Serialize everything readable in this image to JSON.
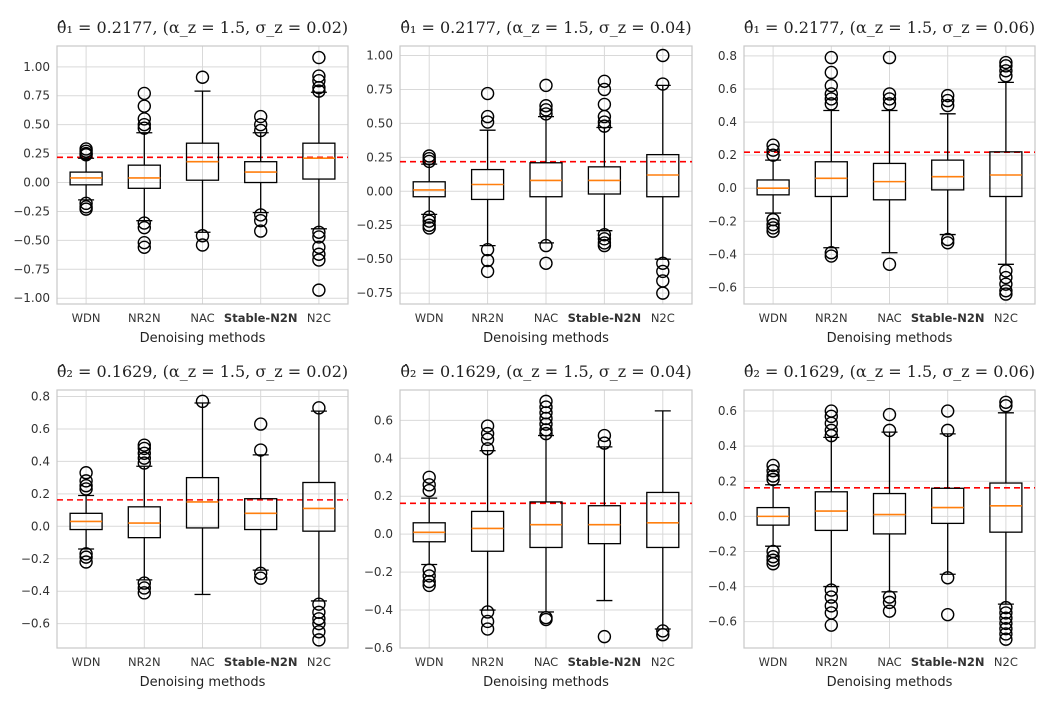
{
  "figure": {
    "colors": {
      "box": "#000000",
      "median": "#ff7f0e",
      "reference": "#ff0000",
      "grid": "#d9d9d9",
      "frame": "#c8c8c8"
    }
  },
  "chart_data": [
    {
      "type": "box",
      "title": "θ̂₁ = 0.2177, (α_z = 1.5, σ_z = 0.02)",
      "xlabel": "Denoising methods",
      "ylabel": "",
      "categories": [
        "WDN",
        "NR2N",
        "NAC",
        "Stable-N2N",
        "N2C"
      ],
      "bold_category": "Stable-N2N",
      "yticks": [
        1.0,
        0.75,
        0.5,
        0.25,
        0.0,
        -0.25,
        -0.5,
        -0.75,
        -1.0
      ],
      "ytick_labels": [
        "1.00",
        "0.75",
        "0.50",
        "0.25",
        "0.00",
        "−0.25",
        "−0.50",
        "−0.75",
        "−1.00"
      ],
      "ylim": [
        -1.05,
        1.18
      ],
      "reference": 0.2177,
      "boxes": [
        {
          "whislo": -0.15,
          "q1": -0.02,
          "med": 0.04,
          "q3": 0.09,
          "whishi": 0.21,
          "fliers": [
            0.29,
            0.27,
            0.25,
            0.24,
            -0.18,
            -0.21,
            -0.23
          ]
        },
        {
          "whislo": -0.33,
          "q1": -0.05,
          "med": 0.04,
          "q3": 0.15,
          "whishi": 0.43,
          "fliers": [
            0.77,
            0.66,
            0.55,
            0.5,
            0.47,
            -0.35,
            -0.39,
            -0.52,
            -0.56
          ]
        },
        {
          "whislo": -0.43,
          "q1": 0.02,
          "med": 0.18,
          "q3": 0.34,
          "whishi": 0.79,
          "fliers": [
            0.91,
            -0.46,
            -0.54
          ]
        },
        {
          "whislo": -0.26,
          "q1": 0.0,
          "med": 0.09,
          "q3": 0.18,
          "whishi": 0.43,
          "fliers": [
            0.57,
            0.5,
            0.45,
            -0.28,
            -0.33,
            -0.42
          ]
        },
        {
          "whislo": -0.4,
          "q1": 0.03,
          "med": 0.21,
          "q3": 0.34,
          "whishi": 0.78,
          "fliers": [
            1.08,
            0.92,
            0.88,
            0.82,
            0.79,
            -0.43,
            -0.47,
            -0.56,
            -0.62,
            -0.67,
            -0.93
          ]
        }
      ]
    },
    {
      "type": "box",
      "title": "θ̂₁ = 0.2177, (α_z = 1.5, σ_z = 0.04)",
      "xlabel": "Denoising methods",
      "ylabel": "",
      "categories": [
        "WDN",
        "NR2N",
        "NAC",
        "Stable-N2N",
        "N2C"
      ],
      "bold_category": "Stable-N2N",
      "yticks": [
        1.0,
        0.75,
        0.5,
        0.25,
        0.0,
        -0.25,
        -0.5,
        -0.75
      ],
      "ytick_labels": [
        "1.00",
        "0.75",
        "0.50",
        "0.25",
        "0.00",
        "−0.25",
        "−0.50",
        "−0.75"
      ],
      "ylim": [
        -0.83,
        1.07
      ],
      "reference": 0.2177,
      "boxes": [
        {
          "whislo": -0.17,
          "q1": -0.04,
          "med": 0.01,
          "q3": 0.07,
          "whishi": 0.2,
          "fliers": [
            0.26,
            0.24,
            0.22,
            -0.19,
            -0.22,
            -0.25,
            -0.27
          ]
        },
        {
          "whislo": -0.4,
          "q1": -0.06,
          "med": 0.05,
          "q3": 0.16,
          "whishi": 0.45,
          "fliers": [
            0.72,
            0.55,
            0.51,
            -0.43,
            -0.51,
            -0.59
          ]
        },
        {
          "whislo": -0.38,
          "q1": -0.04,
          "med": 0.08,
          "q3": 0.21,
          "whishi": 0.55,
          "fliers": [
            0.78,
            0.63,
            0.6,
            0.57,
            -0.4,
            -0.53
          ]
        },
        {
          "whislo": -0.29,
          "q1": -0.02,
          "med": 0.08,
          "q3": 0.18,
          "whishi": 0.47,
          "fliers": [
            0.81,
            0.75,
            0.64,
            0.55,
            0.51,
            0.48,
            -0.32,
            -0.35,
            -0.38,
            -0.4
          ]
        },
        {
          "whislo": -0.5,
          "q1": -0.04,
          "med": 0.12,
          "q3": 0.27,
          "whishi": 0.78,
          "fliers": [
            1.0,
            0.79,
            -0.53,
            -0.59,
            -0.66,
            -0.75
          ]
        }
      ]
    },
    {
      "type": "box",
      "title": "θ̂₁ = 0.2177, (α_z = 1.5, σ_z = 0.06)",
      "xlabel": "Denoising methods",
      "ylabel": "",
      "categories": [
        "WDN",
        "NR2N",
        "NAC",
        "Stable-N2N",
        "N2C"
      ],
      "bold_category": "Stable-N2N",
      "yticks": [
        0.8,
        0.6,
        0.4,
        0.2,
        0.0,
        -0.2,
        -0.4,
        -0.6
      ],
      "ytick_labels": [
        "0.8",
        "0.6",
        "0.4",
        "0.2",
        "0.0",
        "−0.2",
        "−0.4",
        "−0.6"
      ],
      "ylim": [
        -0.7,
        0.86
      ],
      "reference": 0.2177,
      "boxes": [
        {
          "whislo": -0.15,
          "q1": -0.04,
          "med": 0.0,
          "q3": 0.05,
          "whishi": 0.17,
          "fliers": [
            0.26,
            0.23,
            0.2,
            -0.19,
            -0.22,
            -0.24,
            -0.26
          ]
        },
        {
          "whislo": -0.36,
          "q1": -0.05,
          "med": 0.06,
          "q3": 0.16,
          "whishi": 0.47,
          "fliers": [
            0.79,
            0.7,
            0.62,
            0.57,
            0.54,
            0.51,
            -0.39,
            -0.41
          ]
        },
        {
          "whislo": -0.39,
          "q1": -0.07,
          "med": 0.04,
          "q3": 0.15,
          "whishi": 0.47,
          "fliers": [
            0.79,
            0.57,
            0.54,
            0.51,
            -0.46
          ]
        },
        {
          "whislo": -0.28,
          "q1": -0.01,
          "med": 0.07,
          "q3": 0.17,
          "whishi": 0.45,
          "fliers": [
            0.56,
            0.53,
            0.5,
            -0.31,
            -0.33
          ]
        },
        {
          "whislo": -0.46,
          "q1": -0.05,
          "med": 0.08,
          "q3": 0.22,
          "whishi": 0.64,
          "fliers": [
            0.76,
            0.74,
            0.71,
            0.68,
            -0.5,
            -0.54,
            -0.58,
            -0.62,
            -0.64
          ]
        }
      ]
    },
    {
      "type": "box",
      "title": "θ̂₂ = 0.1629, (α_z = 1.5, σ_z = 0.02)",
      "xlabel": "Denoising methods",
      "ylabel": "",
      "categories": [
        "WDN",
        "NR2N",
        "NAC",
        "Stable-N2N",
        "N2C"
      ],
      "bold_category": "Stable-N2N",
      "yticks": [
        0.8,
        0.6,
        0.4,
        0.2,
        0.0,
        -0.2,
        -0.4,
        -0.6
      ],
      "ytick_labels": [
        "0.8",
        "0.6",
        "0.4",
        "0.2",
        "0.0",
        "−0.2",
        "−0.4",
        "−0.6"
      ],
      "ylim": [
        -0.75,
        0.84
      ],
      "reference": 0.1629,
      "boxes": [
        {
          "whislo": -0.14,
          "q1": -0.02,
          "med": 0.03,
          "q3": 0.08,
          "whishi": 0.19,
          "fliers": [
            0.33,
            0.28,
            0.25,
            0.23,
            -0.17,
            -0.19,
            -0.22
          ]
        },
        {
          "whislo": -0.33,
          "q1": -0.07,
          "med": 0.02,
          "q3": 0.12,
          "whishi": 0.37,
          "fliers": [
            0.5,
            0.48,
            0.45,
            0.42,
            0.39,
            -0.35,
            -0.38,
            -0.41
          ]
        },
        {
          "whislo": -0.42,
          "q1": -0.01,
          "med": 0.15,
          "q3": 0.3,
          "whishi": 0.76,
          "fliers": [
            0.77
          ]
        },
        {
          "whislo": -0.27,
          "q1": -0.02,
          "med": 0.08,
          "q3": 0.17,
          "whishi": 0.44,
          "fliers": [
            0.63,
            0.47,
            -0.29,
            -0.32
          ]
        },
        {
          "whislo": -0.46,
          "q1": -0.03,
          "med": 0.11,
          "q3": 0.27,
          "whishi": 0.71,
          "fliers": [
            0.73,
            -0.48,
            -0.53,
            -0.57,
            -0.6,
            -0.65,
            -0.7
          ]
        }
      ]
    },
    {
      "type": "box",
      "title": "θ̂₂ = 0.1629, (α_z = 1.5, σ_z = 0.04)",
      "xlabel": "Denoising methods",
      "ylabel": "",
      "categories": [
        "WDN",
        "NR2N",
        "NAC",
        "Stable-N2N",
        "N2C"
      ],
      "bold_category": "Stable-N2N",
      "yticks": [
        0.6,
        0.4,
        0.2,
        0.0,
        -0.2,
        -0.4,
        -0.6
      ],
      "ytick_labels": [
        "0.6",
        "0.4",
        "0.2",
        "0.0",
        "−0.2",
        "−0.4",
        "−0.6"
      ],
      "ylim": [
        -0.6,
        0.76
      ],
      "reference": 0.1629,
      "boxes": [
        {
          "whislo": -0.16,
          "q1": -0.04,
          "med": 0.01,
          "q3": 0.06,
          "whishi": 0.19,
          "fliers": [
            0.3,
            0.26,
            0.23,
            -0.19,
            -0.22,
            -0.25,
            -0.27
          ]
        },
        {
          "whislo": -0.4,
          "q1": -0.09,
          "med": 0.03,
          "q3": 0.12,
          "whishi": 0.44,
          "fliers": [
            0.57,
            0.53,
            0.5,
            0.45,
            -0.41,
            -0.46,
            -0.5
          ]
        },
        {
          "whislo": -0.41,
          "q1": -0.07,
          "med": 0.05,
          "q3": 0.17,
          "whishi": 0.52,
          "fliers": [
            0.7,
            0.67,
            0.64,
            0.61,
            0.58,
            0.55,
            0.53,
            -0.44,
            -0.45
          ]
        },
        {
          "whislo": -0.35,
          "q1": -0.05,
          "med": 0.05,
          "q3": 0.15,
          "whishi": 0.46,
          "fliers": [
            0.52,
            0.48,
            -0.54
          ]
        },
        {
          "whislo": -0.5,
          "q1": -0.07,
          "med": 0.06,
          "q3": 0.22,
          "whishi": 0.65,
          "fliers": [
            -0.51,
            -0.53
          ]
        }
      ]
    },
    {
      "type": "box",
      "title": "θ̂₂ = 0.1629, (α_z = 1.5, σ_z = 0.06)",
      "xlabel": "Denoising methods",
      "ylabel": "",
      "categories": [
        "WDN",
        "NR2N",
        "NAC",
        "Stable-N2N",
        "N2C"
      ],
      "bold_category": "Stable-N2N",
      "yticks": [
        0.6,
        0.4,
        0.2,
        0.0,
        -0.2,
        -0.4,
        -0.6
      ],
      "ytick_labels": [
        "0.6",
        "0.4",
        "0.2",
        "0.0",
        "−0.2",
        "−0.4",
        "−0.6"
      ],
      "ylim": [
        -0.75,
        0.72
      ],
      "reference": 0.1629,
      "boxes": [
        {
          "whislo": -0.17,
          "q1": -0.05,
          "med": 0.0,
          "q3": 0.05,
          "whishi": 0.18,
          "fliers": [
            0.29,
            0.26,
            0.23,
            0.21,
            -0.2,
            -0.23,
            -0.25,
            -0.27
          ]
        },
        {
          "whislo": -0.4,
          "q1": -0.08,
          "med": 0.03,
          "q3": 0.14,
          "whishi": 0.45,
          "fliers": [
            0.6,
            0.57,
            0.53,
            0.49,
            0.46,
            -0.42,
            -0.46,
            -0.51,
            -0.55,
            -0.62
          ]
        },
        {
          "whislo": -0.43,
          "q1": -0.1,
          "med": 0.01,
          "q3": 0.13,
          "whishi": 0.48,
          "fliers": [
            0.58,
            0.49,
            -0.46,
            -0.49,
            -0.54
          ]
        },
        {
          "whislo": -0.33,
          "q1": -0.04,
          "med": 0.05,
          "q3": 0.16,
          "whishi": 0.47,
          "fliers": [
            0.6,
            0.49,
            -0.35,
            -0.56
          ]
        },
        {
          "whislo": -0.5,
          "q1": -0.09,
          "med": 0.06,
          "q3": 0.19,
          "whishi": 0.59,
          "fliers": [
            0.65,
            0.63,
            -0.52,
            -0.55,
            -0.58,
            -0.61,
            -0.64,
            -0.67,
            -0.7
          ]
        }
      ]
    }
  ]
}
